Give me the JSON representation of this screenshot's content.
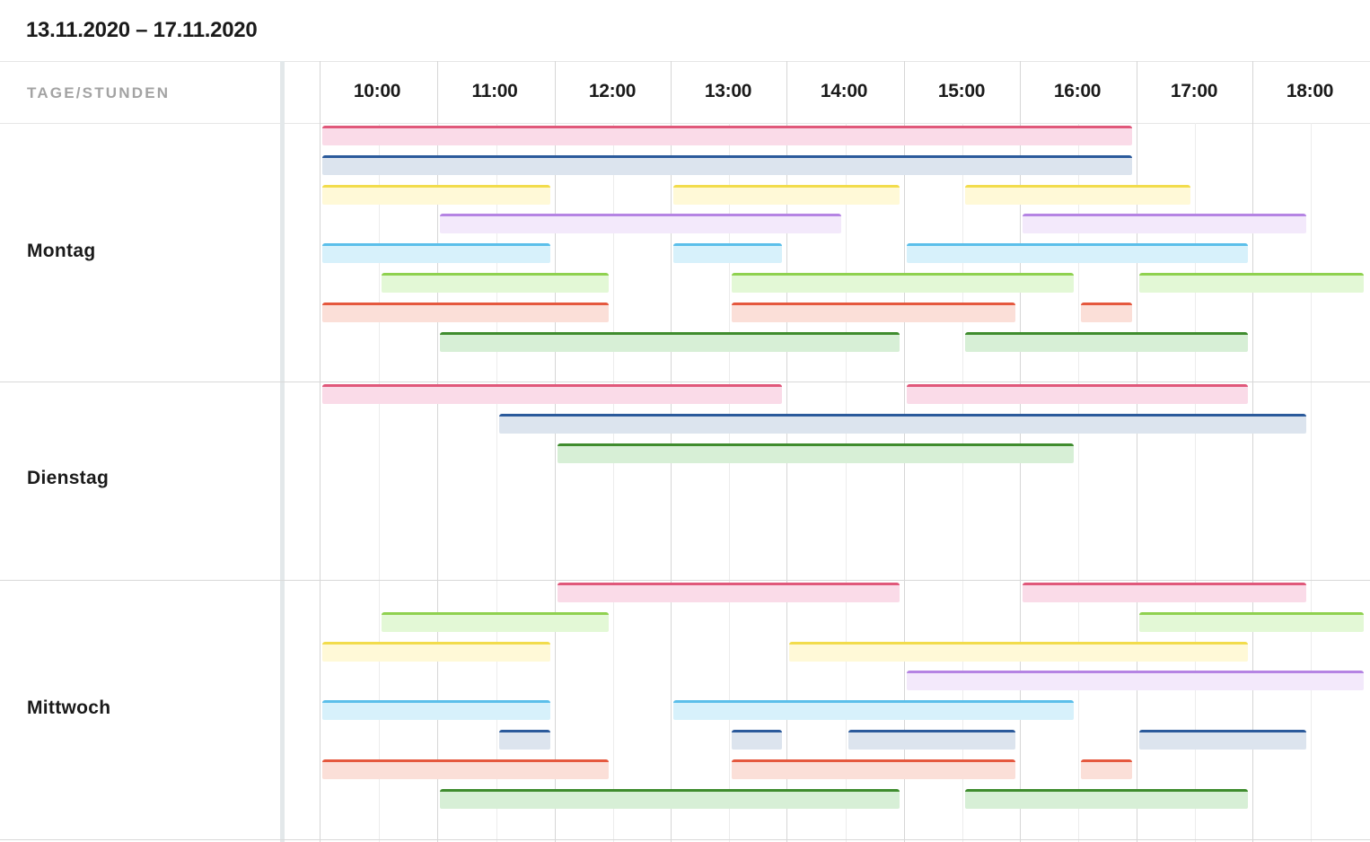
{
  "date_range": "13.11.2020 – 17.11.2020",
  "corner_label": "TAGE/STUNDEN",
  "hours": [
    "10:00",
    "11:00",
    "12:00",
    "13:00",
    "14:00",
    "15:00",
    "16:00",
    "17:00",
    "18:00"
  ],
  "days": [
    {
      "label": "Montag",
      "bars": [
        {
          "color": "pink",
          "start": "10:00",
          "end": "17:00"
        },
        {
          "color": "navy",
          "start": "10:00",
          "end": "17:00"
        },
        {
          "color": "yellow",
          "start": "10:00",
          "end": "12:00"
        },
        {
          "color": "yellow",
          "start": "13:00",
          "end": "15:00"
        },
        {
          "color": "yellow",
          "start": "15:30",
          "end": "17:30"
        },
        {
          "color": "purple",
          "start": "11:00",
          "end": "14:30"
        },
        {
          "color": "purple",
          "start": "16:00",
          "end": "18:30"
        },
        {
          "color": "sky",
          "start": "10:00",
          "end": "12:00"
        },
        {
          "color": "sky",
          "start": "13:00",
          "end": "14:00"
        },
        {
          "color": "sky",
          "start": "15:00",
          "end": "18:00"
        },
        {
          "color": "lime",
          "start": "10:30",
          "end": "12:30"
        },
        {
          "color": "lime",
          "start": "13:30",
          "end": "16:30"
        },
        {
          "color": "lime",
          "start": "17:00",
          "end": "19:00"
        },
        {
          "color": "orange",
          "start": "10:00",
          "end": "12:30"
        },
        {
          "color": "orange",
          "start": "13:30",
          "end": "16:00"
        },
        {
          "color": "orange",
          "start": "16:30",
          "end": "17:00"
        },
        {
          "color": "green",
          "start": "11:00",
          "end": "15:00"
        },
        {
          "color": "green",
          "start": "15:30",
          "end": "18:00"
        }
      ]
    },
    {
      "label": "Dienstag",
      "bars": [
        {
          "color": "pink",
          "start": "10:00",
          "end": "14:00"
        },
        {
          "color": "pink",
          "start": "15:00",
          "end": "18:00"
        },
        {
          "color": "navy",
          "start": "11:30",
          "end": "18:30"
        },
        {
          "color": "green",
          "start": "12:00",
          "end": "16:30"
        }
      ]
    },
    {
      "label": "Mittwoch",
      "bars": [
        {
          "color": "pink",
          "start": "12:00",
          "end": "15:00"
        },
        {
          "color": "pink",
          "start": "16:00",
          "end": "18:30"
        },
        {
          "color": "lime",
          "start": "10:30",
          "end": "12:30"
        },
        {
          "color": "lime",
          "start": "17:00",
          "end": "19:00"
        },
        {
          "color": "yellow",
          "start": "10:00",
          "end": "12:00"
        },
        {
          "color": "yellow",
          "start": "14:00",
          "end": "18:00"
        },
        {
          "color": "purple",
          "start": "15:00",
          "end": "19:00"
        },
        {
          "color": "sky",
          "start": "10:00",
          "end": "12:00"
        },
        {
          "color": "sky",
          "start": "13:00",
          "end": "16:30"
        },
        {
          "color": "navy",
          "start": "11:30",
          "end": "12:00"
        },
        {
          "color": "navy",
          "start": "13:30",
          "end": "14:00"
        },
        {
          "color": "navy",
          "start": "14:30",
          "end": "16:00"
        },
        {
          "color": "navy",
          "start": "17:00",
          "end": "18:30"
        },
        {
          "color": "orange",
          "start": "10:00",
          "end": "12:30"
        },
        {
          "color": "orange",
          "start": "13:30",
          "end": "16:00"
        },
        {
          "color": "orange",
          "start": "16:30",
          "end": "17:00"
        },
        {
          "color": "green",
          "start": "11:00",
          "end": "15:00"
        },
        {
          "color": "green",
          "start": "15:30",
          "end": "18:00"
        }
      ]
    }
  ],
  "colors": {
    "pink": {
      "line": "#e0587a",
      "fill": "#fadbe8"
    },
    "navy": {
      "line": "#2b5a9b",
      "fill": "#dce4ee"
    },
    "yellow": {
      "line": "#f2dc4c",
      "fill": "#fff9d7"
    },
    "purple": {
      "line": "#b584e3",
      "fill": "#f3e9fb"
    },
    "sky": {
      "line": "#5bbfea",
      "fill": "#d7f1fb"
    },
    "lime": {
      "line": "#8fd14f",
      "fill": "#e3f8d6"
    },
    "orange": {
      "line": "#e5583e",
      "fill": "#fbdfd8"
    },
    "green": {
      "line": "#3f8c2e",
      "fill": "#d7efd6"
    }
  }
}
